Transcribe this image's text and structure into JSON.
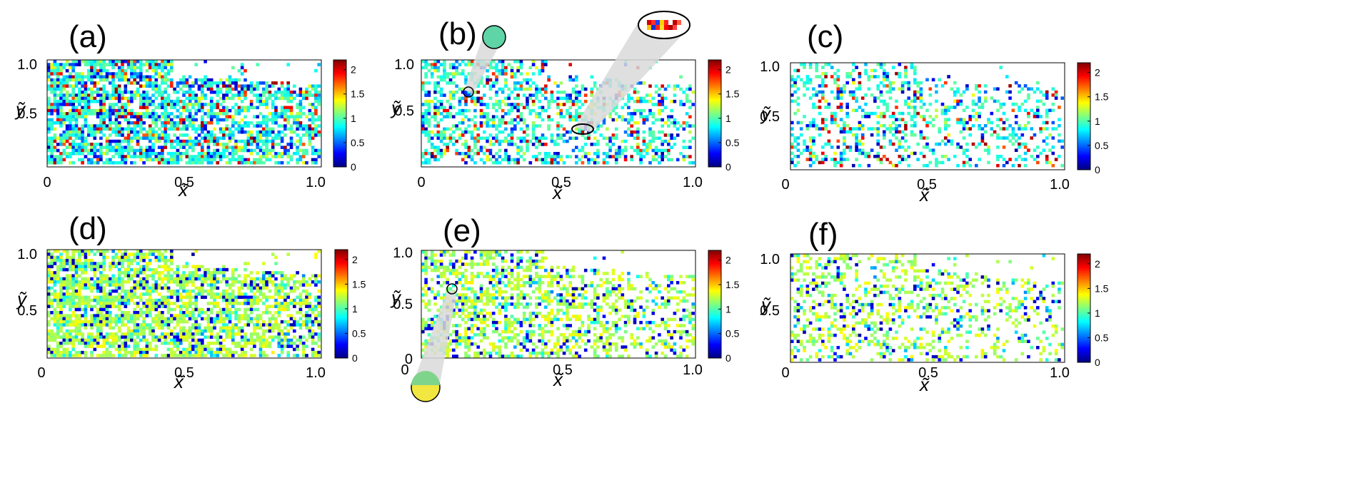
{
  "figure": {
    "panels": [
      {
        "label": "(a)",
        "density": 0.82,
        "palette": "mixed",
        "zoom": "none"
      },
      {
        "label": "(b)",
        "density": 0.55,
        "palette": "mixed",
        "zoom": "both"
      },
      {
        "label": "(c)",
        "density": 0.38,
        "palette": "mixed",
        "zoom": "none"
      },
      {
        "label": "(d)",
        "density": 0.82,
        "palette": "yellow",
        "zoom": "none"
      },
      {
        "label": "(e)",
        "density": 0.55,
        "palette": "yellow",
        "zoom": "bottom"
      },
      {
        "label": "(f)",
        "density": 0.38,
        "palette": "yellow",
        "zoom": "none"
      }
    ],
    "x_ticks": [
      "0",
      "0.5",
      "1.0"
    ],
    "y_ticks": [
      "0.5",
      "1.0"
    ],
    "y_ticks_e": [
      "0",
      "0.5",
      "1.0"
    ],
    "colorbar_ticks": [
      "0",
      "0.5",
      "1",
      "1.5",
      "2"
    ],
    "xlabel": "x̃",
    "ylabel": "ỹ"
  },
  "chart_data": {
    "type": "heatmap",
    "xlim": [
      0,
      1
    ],
    "ylim": [
      0,
      1
    ],
    "colorbar_range": [
      0,
      2.2
    ],
    "colormap": "jet",
    "panels": [
      "(a)",
      "(b)",
      "(c)",
      "(d)",
      "(e)",
      "(f)"
    ]
  }
}
